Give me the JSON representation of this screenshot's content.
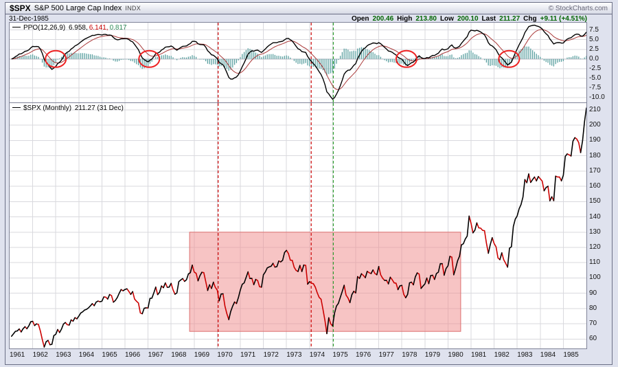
{
  "header": {
    "symbol": "$SPX",
    "name": "S&P 500 Large Cap Index",
    "exchange": "INDX",
    "copyright": "© StockCharts.com"
  },
  "info": {
    "date": "31-Dec-1985",
    "open_label": "Open",
    "open": "200.46",
    "high_label": "High",
    "high": "213.80",
    "low_label": "Low",
    "low": "200.10",
    "last_label": "Last",
    "last": "211.27",
    "chg_label": "Chg",
    "chg": "+9.11 (+4.51%)"
  },
  "colors": {
    "background": "#dfe2ee",
    "panel": "#ffffff",
    "grid": "#d9d9de",
    "grid_zero": "#bbbbc4",
    "ppo_line": "#000000",
    "ppo_signal": "#aa3939",
    "ppo_hist": "#5aa0a0",
    "price_up": "#000000",
    "price_down": "#cc0000",
    "circle": "#ee2222"
  },
  "chart_data": [
    {
      "type": "line",
      "panel": "indicator",
      "title": "PPO(12,26,9)",
      "params": {
        "fast_ema": 12,
        "slow_ema": 26,
        "signal_ema": 9
      },
      "derived_from": "price panel monthly_close series (percentage price oscillator)",
      "last_values": {
        "ppo": 6.958,
        "signal": 6.141,
        "histogram": 0.817
      },
      "legend": {
        "name": "PPO(12,26,9)",
        "v_ppo": "6.958,",
        "v_signal": "6.141,",
        "v_hist": "0.817"
      },
      "ylim": [
        -10.0,
        7.5
      ],
      "yticks": [
        7.5,
        5.0,
        2.5,
        0.0,
        -2.5,
        -5.0,
        -7.5,
        -10.0
      ],
      "legend_position": "top-left",
      "grid": true,
      "annotations": {
        "signal_circles_years": [
          1963.0,
          1967.05,
          1978.2,
          1982.65
        ],
        "circle_note": "red circles mark PPO zero-line upward crossovers"
      }
    },
    {
      "type": "line",
      "panel": "price",
      "title": "$SPX (Monthly) 211.27 (31 Dec)",
      "legend": {
        "name": "$SPX (Monthly)",
        "value": "211.27 (31 Dec)"
      },
      "x_start_year": 1961,
      "x_range": [
        1961,
        1986
      ],
      "xticks_years": [
        1961,
        1962,
        1963,
        1964,
        1965,
        1966,
        1967,
        1968,
        1969,
        1970,
        1971,
        1972,
        1973,
        1974,
        1975,
        1976,
        1977,
        1978,
        1979,
        1980,
        1981,
        1982,
        1983,
        1984,
        1985
      ],
      "ylim": [
        60,
        210
      ],
      "yticks": [
        210,
        200,
        190,
        180,
        170,
        160,
        150,
        140,
        130,
        120,
        110,
        100,
        90,
        80,
        70,
        60
      ],
      "grid": true,
      "monthly_close": [
        61.78,
        63.44,
        65.06,
        65.31,
        66.56,
        64.64,
        66.76,
        68.07,
        66.73,
        68.62,
        71.32,
        71.55,
        68.84,
        69.96,
        69.55,
        65.24,
        59.63,
        54.75,
        58.23,
        59.12,
        56.27,
        56.52,
        62.26,
        63.1,
        66.2,
        64.29,
        66.57,
        69.8,
        70.8,
        69.37,
        69.13,
        72.5,
        71.7,
        74.01,
        73.23,
        75.02,
        77.04,
        77.8,
        78.98,
        79.46,
        80.37,
        81.69,
        83.18,
        81.83,
        84.18,
        84.86,
        84.42,
        84.75,
        87.56,
        87.43,
        86.16,
        89.11,
        88.42,
        84.12,
        85.25,
        87.17,
        89.96,
        92.42,
        91.61,
        92.43,
        92.88,
        91.22,
        89.23,
        91.06,
        86.13,
        84.74,
        83.6,
        77.1,
        76.56,
        80.2,
        80.45,
        80.33,
        86.61,
        86.78,
        90.2,
        94.01,
        89.08,
        90.64,
        94.75,
        93.64,
        96.71,
        93.9,
        94.0,
        96.47,
        92.24,
        89.36,
        90.2,
        97.59,
        98.68,
        99.58,
        97.74,
        98.86,
        102.67,
        103.41,
        108.37,
        103.86,
        103.01,
        98.13,
        101.51,
        103.69,
        103.46,
        97.71,
        91.83,
        95.51,
        93.12,
        97.24,
        93.81,
        92.06,
        85.02,
        89.5,
        89.63,
        81.52,
        76.55,
        72.72,
        78.05,
        81.52,
        84.21,
        83.25,
        87.2,
        92.15,
        95.88,
        96.75,
        100.31,
        103.95,
        99.63,
        99.7,
        95.58,
        99.03,
        98.34,
        94.23,
        93.99,
        102.09,
        103.94,
        106.57,
        107.2,
        107.67,
        109.53,
        107.14,
        107.39,
        111.09,
        110.55,
        111.58,
        116.67,
        118.05,
        116.03,
        111.68,
        111.52,
        106.97,
        104.95,
        104.26,
        108.22,
        104.25,
        108.43,
        108.29,
        95.96,
        97.55,
        96.57,
        96.22,
        93.98,
        90.31,
        87.28,
        86.0,
        79.31,
        72.15,
        63.54,
        73.9,
        69.97,
        68.56,
        76.98,
        81.59,
        83.36,
        87.3,
        91.15,
        95.19,
        88.75,
        86.88,
        83.87,
        89.04,
        91.24,
        90.19,
        100.86,
        99.71,
        102.77,
        101.64,
        100.18,
        104.28,
        103.44,
        102.91,
        105.24,
        102.9,
        102.1,
        107.46,
        102.03,
        99.82,
        98.42,
        98.44,
        96.12,
        100.48,
        98.85,
        96.77,
        96.53,
        92.34,
        94.83,
        95.1,
        89.25,
        87.04,
        89.21,
        96.83,
        97.24,
        95.53,
        100.68,
        103.29,
        102.54,
        93.15,
        94.7,
        96.11,
        99.93,
        96.28,
        101.59,
        101.76,
        99.08,
        102.91,
        103.81,
        109.32,
        109.32,
        101.82,
        106.16,
        107.94,
        114.16,
        113.66,
        102.09,
        106.29,
        111.24,
        114.24,
        121.67,
        122.38,
        125.46,
        127.47,
        140.52,
        135.76,
        129.55,
        131.27,
        136.0,
        132.81,
        132.59,
        131.21,
        130.92,
        122.79,
        116.18,
        121.89,
        126.35,
        122.55,
        120.4,
        113.11,
        111.96,
        116.44,
        111.88,
        109.61,
        107.09,
        119.51,
        120.42,
        133.71,
        138.54,
        140.64,
        145.3,
        148.06,
        152.96,
        164.42,
        162.39,
        168.11,
        162.56,
        164.4,
        166.07,
        163.55,
        166.4,
        164.93,
        163.41,
        157.06,
        159.18,
        160.05,
        150.55,
        153.18,
        150.66,
        166.68,
        166.1,
        166.09,
        163.58,
        167.24,
        179.63,
        181.18,
        180.66,
        179.83,
        189.55,
        191.85,
        190.92,
        188.63,
        182.08,
        189.82,
        202.17,
        211.27
      ],
      "annotations": {
        "shaded_box": {
          "x_from_year": 1968.8,
          "x_to_year": 1980.55,
          "value_from": 65,
          "value_to": 130,
          "fill": "#f08a8a",
          "stroke": "#dd7070",
          "fill_opacity": 0.5
        },
        "vlines": [
          {
            "year": 1970.04,
            "color": "#cc0000",
            "style": "dashed"
          },
          {
            "year": 1974.07,
            "color": "#cc0000",
            "style": "dashed"
          },
          {
            "year": 1975.03,
            "color": "#2f9e2f",
            "style": "dashed"
          }
        ]
      }
    }
  ]
}
